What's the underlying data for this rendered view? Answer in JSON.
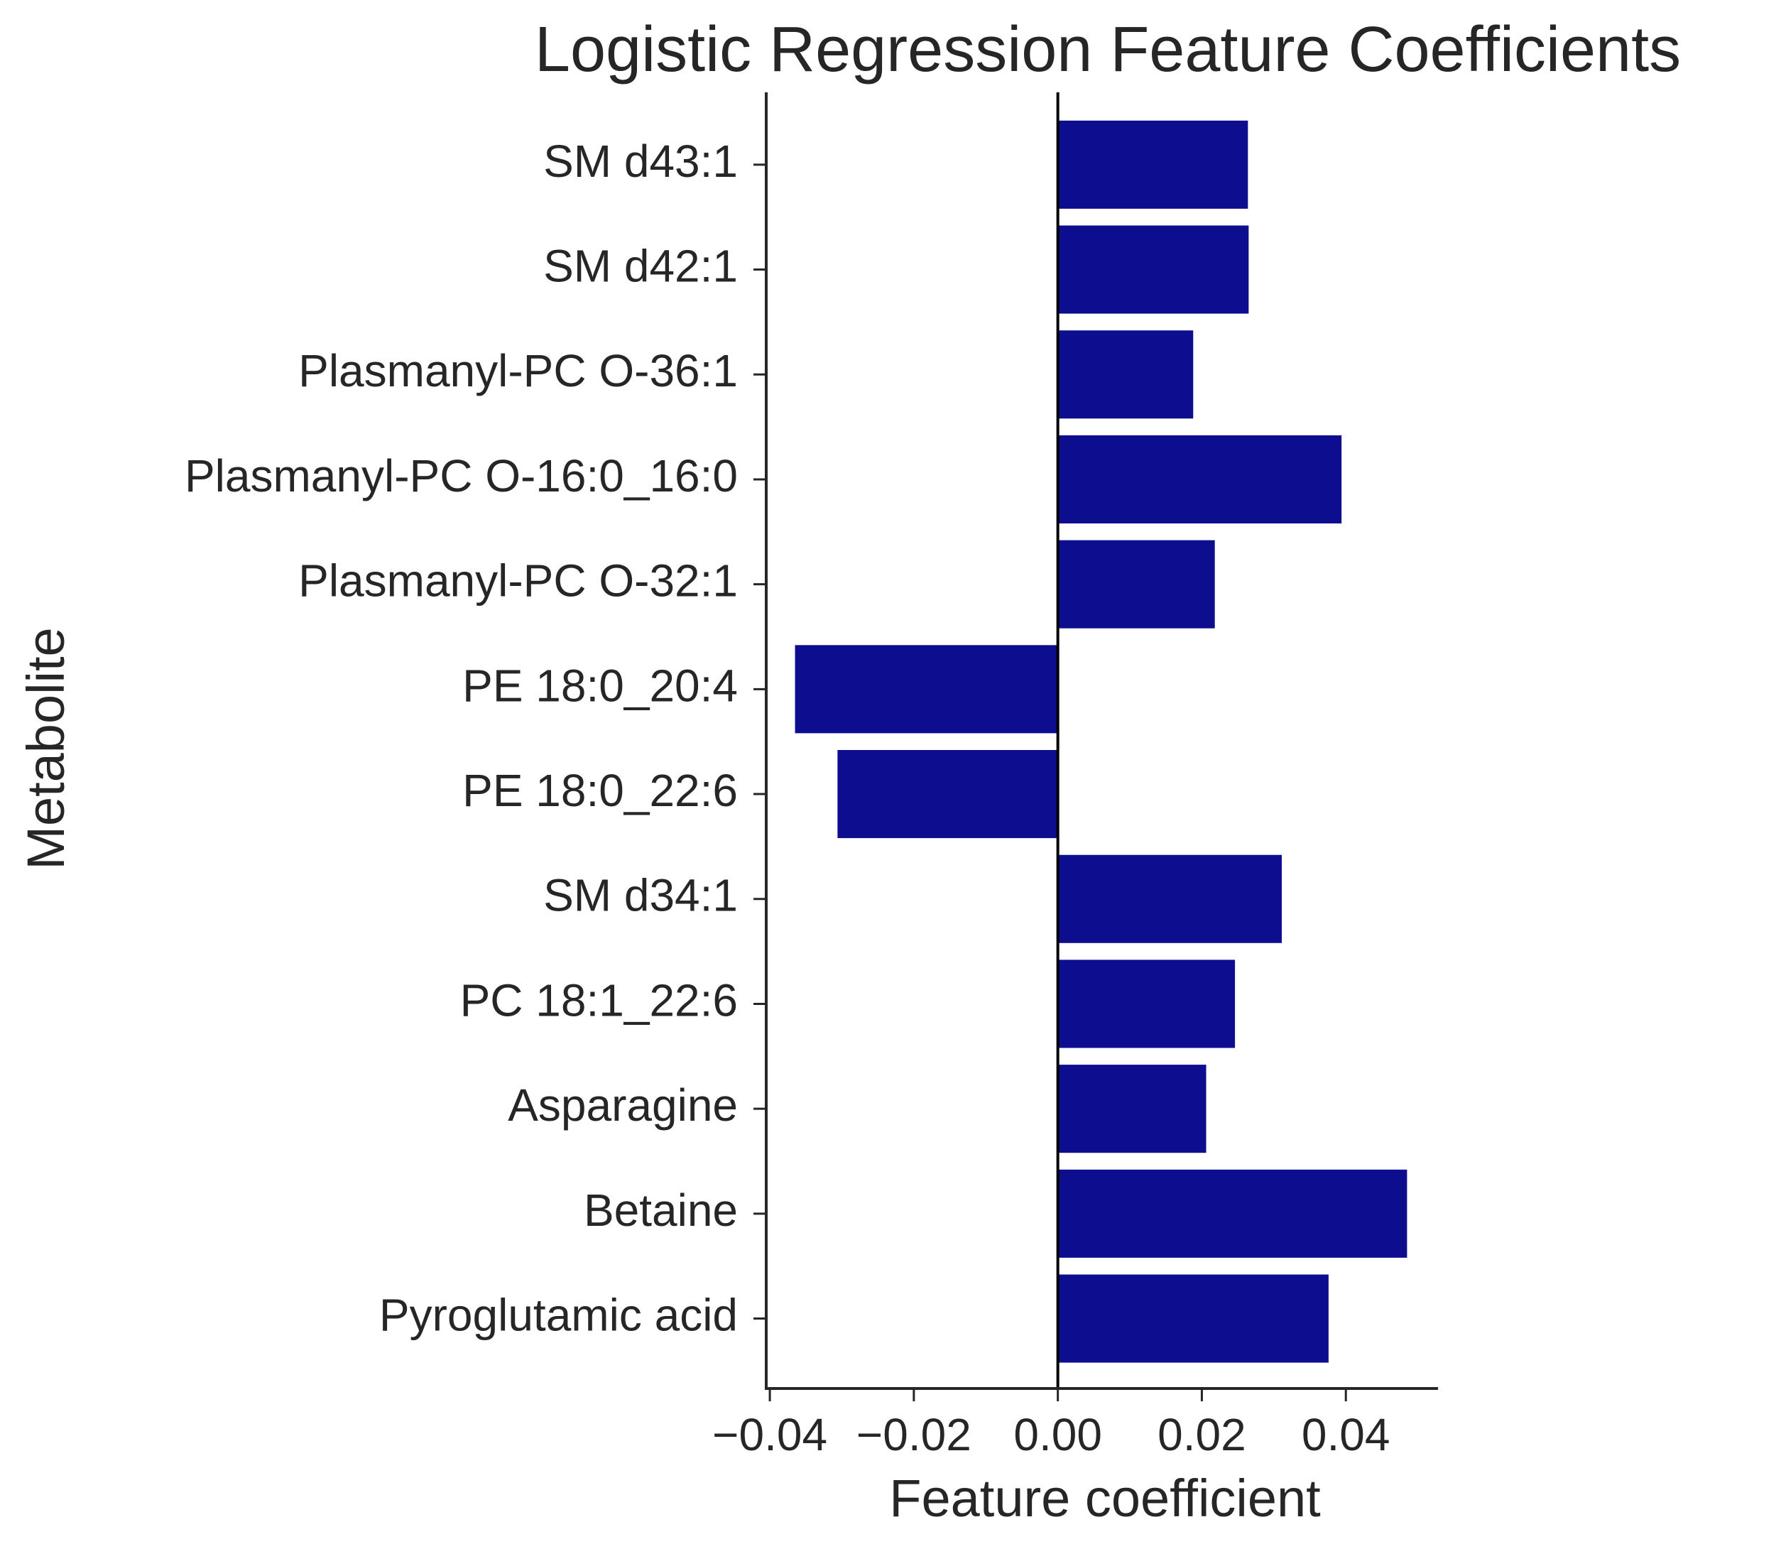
{
  "chart_data": {
    "type": "bar",
    "orientation": "horizontal",
    "title": "Logistic Regression Feature Coefficients",
    "xlabel": "Feature coefficient",
    "ylabel": "Metabolite",
    "categories": [
      "SM d43:1",
      "SM d42:1",
      "Plasmanyl-PC O-36:1",
      "Plasmanyl-PC O-16:0_16:0",
      "Plasmanyl-PC O-32:1",
      "PE 18:0_20:4",
      "PE 18:0_22:6",
      "SM d34:1",
      "PC 18:1_22:6",
      "Asparagine",
      "Betaine",
      "Pyroglutamic acid"
    ],
    "values": [
      0.0264,
      0.0265,
      0.0188,
      0.0394,
      0.0218,
      -0.0365,
      -0.0306,
      0.0311,
      0.0246,
      0.0206,
      0.0485,
      0.0376
    ],
    "xlim": [
      -0.0405,
      0.0528
    ],
    "xticks": [
      -0.04,
      -0.02,
      0.0,
      0.02,
      0.04
    ],
    "xtick_labels": [
      "−0.04",
      "−0.02",
      "0.00",
      "0.02",
      "0.04"
    ],
    "bar_color": "#0d0d8f",
    "zero_line": true,
    "grid": false
  }
}
